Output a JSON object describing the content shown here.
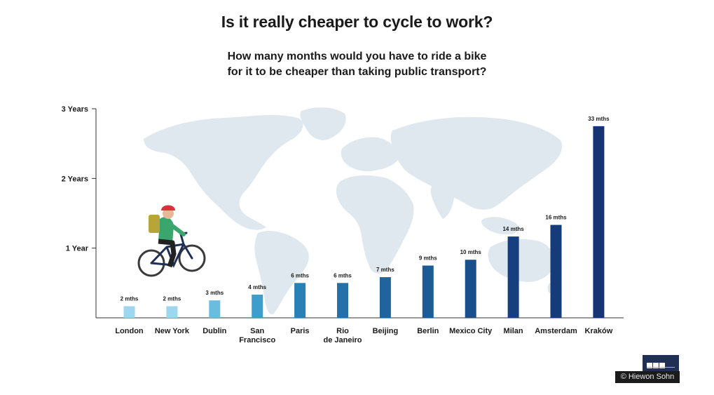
{
  "title": "Is it really cheaper to cycle to work?",
  "subtitle_line1": "How many months would you have to ride a bike",
  "subtitle_line2": "for it to be cheaper than taking public transport?",
  "credit": "© Hiewon Sohn",
  "logo_text": "BBC",
  "chart_data": {
    "type": "bar",
    "title": "Is it really cheaper to cycle to work?",
    "subtitle": "How many months would you have to ride a bike for it to be cheaper than taking public transport?",
    "xlabel": "",
    "ylabel": "",
    "ylim": [
      0,
      36
    ],
    "y_ticks": [
      {
        "value": 12,
        "label": "1 Year"
      },
      {
        "value": 24,
        "label": "2 Years"
      },
      {
        "value": 36,
        "label": "3 Years"
      }
    ],
    "grid": false,
    "categories": [
      [
        "London"
      ],
      [
        "New York"
      ],
      [
        "Dublin"
      ],
      [
        "San",
        "Francisco"
      ],
      [
        "Paris"
      ],
      [
        "Rio",
        "de Janeiro"
      ],
      [
        "Beijing"
      ],
      [
        "Berlin"
      ],
      [
        "Mexico City"
      ],
      [
        "Milan"
      ],
      [
        "Amsterdam"
      ],
      [
        "Kraków"
      ]
    ],
    "values": [
      2,
      2,
      3,
      4,
      6,
      6,
      7,
      9,
      10,
      14,
      16,
      33
    ],
    "value_labels": [
      "2 mths",
      "2 mths",
      "3 mths",
      "4 mths",
      "6 mths",
      "6 mths",
      "7 mths",
      "9 mths",
      "10 mths",
      "14 mths",
      "16 mths",
      "33 mths"
    ],
    "colors": [
      "#9ed6ee",
      "#9ed6ee",
      "#6bbde0",
      "#3f9dcb",
      "#2980b6",
      "#2670aa",
      "#20649f",
      "#1d5b97",
      "#1a4f8c",
      "#173f7f",
      "#163b79",
      "#143473"
    ],
    "background": "world-map-silhouette",
    "map_color": "#dfe8ef"
  }
}
